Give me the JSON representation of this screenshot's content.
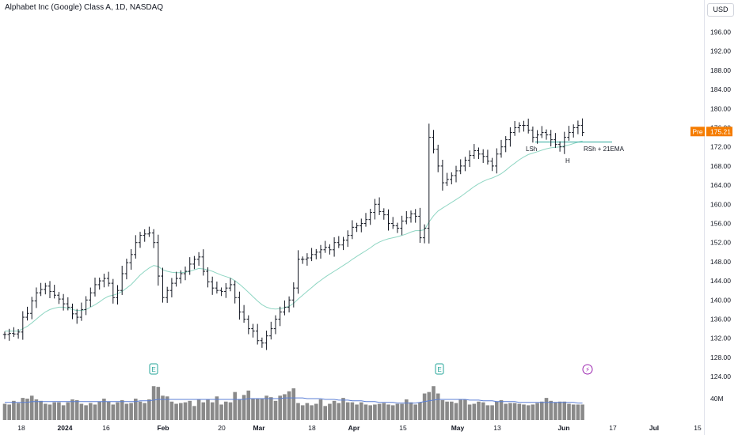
{
  "header": {
    "title": "Alphabet Inc (Google) Class A, 1D, NASDAQ",
    "currency": "USD"
  },
  "price_badge": {
    "label": "Pre",
    "value": "175.21",
    "color": "#f57c00"
  },
  "annotations": {
    "lsh": "LSh",
    "h": "H",
    "rsh": "RSh + 21EMA"
  },
  "events": {
    "earnings": "E",
    "dividend": "⚡"
  },
  "colors": {
    "bars": "#131722",
    "ema": "#8fd6c3",
    "volume": "#8a8a8a",
    "volume_ma": "#5b7fd6",
    "neckline": "#26a69a"
  },
  "chart_data": {
    "type": "ohlc",
    "yticks": [
      "196.00",
      "192.00",
      "188.00",
      "184.00",
      "180.00",
      "176.00",
      "172.00",
      "168.00",
      "164.00",
      "160.00",
      "156.00",
      "152.00",
      "148.00",
      "144.00",
      "140.00",
      "136.00",
      "132.00",
      "128.00",
      "124.00"
    ],
    "ytick_values": [
      196,
      192,
      188,
      184,
      180,
      176,
      172,
      168,
      164,
      160,
      156,
      152,
      148,
      144,
      140,
      136,
      132,
      128,
      124
    ],
    "ylim": [
      123,
      199
    ],
    "xticks": [
      "18",
      "2024",
      "16",
      "Feb",
      "20",
      "Mar",
      "18",
      "Apr",
      "15",
      "May",
      "13",
      "Jun",
      "17",
      "Jul",
      "15"
    ],
    "volume_label": "40M",
    "neckline_value": 173.0,
    "closes": [
      132.8,
      133.0,
      132.9,
      133.3,
      136.4,
      137.2,
      139.8,
      141.5,
      142.2,
      142.9,
      141.8,
      141.0,
      140.2,
      139.2,
      138.5,
      137.1,
      136.4,
      138.0,
      140.0,
      141.5,
      143.2,
      144.0,
      144.5,
      143.5,
      140.5,
      142.0,
      145.5,
      147.8,
      149.5,
      152.0,
      153.5,
      153.8,
      154.0,
      152.0,
      145.0,
      140.5,
      142.0,
      143.5,
      144.5,
      145.5,
      146.0,
      147.5,
      148.5,
      149.0,
      146.0,
      143.8,
      142.5,
      142.0,
      141.8,
      142.5,
      143.2,
      140.5,
      137.5,
      136.0,
      134.0,
      133.5,
      131.5,
      131.0,
      132.5,
      134.0,
      136.0,
      137.5,
      138.5,
      140.0,
      142.5,
      148.5,
      148.5,
      148.8,
      149.5,
      150.0,
      150.5,
      151.0,
      150.5,
      152.0,
      151.5,
      152.5,
      153.5,
      155.2,
      155.5,
      156.0,
      156.8,
      158.3,
      160.0,
      158.5,
      157.8,
      156.0,
      155.5,
      155.0,
      156.5,
      157.2,
      158.0,
      157.5,
      153.0,
      155.0,
      174.0,
      171.5,
      168.0,
      164.5,
      165.2,
      166.0,
      167.0,
      168.0,
      169.2,
      170.2,
      171.2,
      170.5,
      170.0,
      169.0,
      168.0,
      170.5,
      172.0,
      173.5,
      175.0,
      176.0,
      176.5,
      176.5,
      175.5,
      174.0,
      174.5,
      175.0,
      174.5,
      173.5,
      172.5,
      172.0,
      174.0,
      175.0,
      176.0,
      176.5,
      175.0
    ],
    "ema21": [
      133.5,
      133.5,
      133.5,
      133.5,
      134.0,
      134.5,
      135.2,
      136.0,
      136.8,
      137.5,
      138.0,
      138.3,
      138.5,
      138.5,
      138.3,
      138.0,
      137.8,
      137.8,
      138.0,
      138.5,
      139.0,
      139.6,
      140.3,
      140.8,
      141.0,
      141.3,
      141.8,
      142.5,
      143.2,
      144.2,
      145.2,
      146.0,
      146.7,
      147.2,
      147.0,
      146.3,
      146.0,
      145.8,
      145.7,
      145.7,
      145.8,
      146.0,
      146.3,
      146.6,
      146.5,
      146.3,
      146.0,
      145.6,
      145.2,
      144.9,
      144.6,
      144.0,
      143.3,
      142.5,
      141.6,
      140.7,
      139.8,
      139.0,
      138.5,
      138.2,
      138.1,
      138.2,
      138.4,
      138.7,
      139.3,
      140.2,
      141.0,
      141.8,
      142.6,
      143.4,
      144.1,
      144.8,
      145.4,
      146.0,
      146.6,
      147.2,
      147.8,
      148.5,
      149.1,
      149.7,
      150.3,
      150.9,
      151.6,
      152.1,
      152.5,
      152.8,
      153.0,
      153.2,
      153.5,
      153.8,
      154.2,
      154.5,
      154.5,
      154.7,
      156.3,
      157.6,
      158.6,
      159.2,
      159.8,
      160.4,
      161.0,
      161.6,
      162.3,
      163.0,
      163.7,
      164.3,
      164.8,
      165.2,
      165.5,
      165.9,
      166.4,
      167.1,
      167.9,
      168.6,
      169.3,
      169.9,
      170.4,
      170.7,
      171.0,
      171.3,
      171.6,
      171.8,
      171.9,
      172.0,
      172.2,
      172.4,
      172.7,
      173.0,
      173.2
    ],
    "volume": [
      22,
      21,
      26,
      23,
      30,
      29,
      33,
      28,
      26,
      22,
      21,
      24,
      24,
      20,
      24,
      28,
      27,
      22,
      20,
      23,
      21,
      25,
      29,
      25,
      21,
      24,
      27,
      22,
      23,
      29,
      25,
      23,
      28,
      46,
      45,
      33,
      32,
      25,
      22,
      23,
      24,
      26,
      19,
      28,
      24,
      28,
      24,
      32,
      21,
      25,
      24,
      38,
      28,
      34,
      40,
      29,
      29,
      29,
      33,
      31,
      26,
      33,
      35,
      39,
      43,
      23,
      20,
      23,
      20,
      22,
      28,
      19,
      22,
      26,
      23,
      30,
      24,
      24,
      21,
      24,
      21,
      20,
      21,
      22,
      23,
      21,
      20,
      22,
      22,
      28,
      24,
      21,
      24,
      36,
      38,
      46,
      36,
      27,
      25,
      25,
      23,
      28,
      28,
      21,
      22,
      25,
      24,
      20,
      20,
      25,
      27,
      22,
      23,
      23,
      22,
      21,
      20,
      21,
      23,
      25,
      30,
      26,
      24,
      25,
      25,
      22,
      21,
      21,
      21
    ],
    "volume_ma": [
      24,
      24,
      24,
      24,
      24,
      24,
      25,
      25,
      25,
      25,
      25,
      25,
      25,
      25,
      25,
      25,
      25,
      25,
      25,
      25,
      25,
      25,
      25,
      25,
      25,
      25,
      25,
      25,
      25,
      25,
      26,
      26,
      26,
      27,
      28,
      28,
      28,
      28,
      28,
      28,
      28,
      28,
      28,
      28,
      28,
      28,
      28,
      28,
      28,
      28,
      28,
      28,
      28,
      28,
      29,
      29,
      29,
      29,
      29,
      29,
      29,
      29,
      30,
      30,
      30,
      30,
      30,
      29,
      29,
      29,
      29,
      28,
      28,
      28,
      27,
      27,
      27,
      26,
      26,
      26,
      25,
      25,
      25,
      24,
      24,
      24,
      24,
      23,
      23,
      23,
      23,
      23,
      24,
      25,
      26,
      27,
      28,
      28,
      28,
      28,
      28,
      28,
      28,
      27,
      27,
      27,
      26,
      26,
      26,
      25,
      25,
      25,
      25,
      25,
      24,
      24,
      24,
      24,
      24,
      24,
      24,
      24,
      24,
      24,
      24,
      24,
      24,
      23,
      23
    ]
  }
}
